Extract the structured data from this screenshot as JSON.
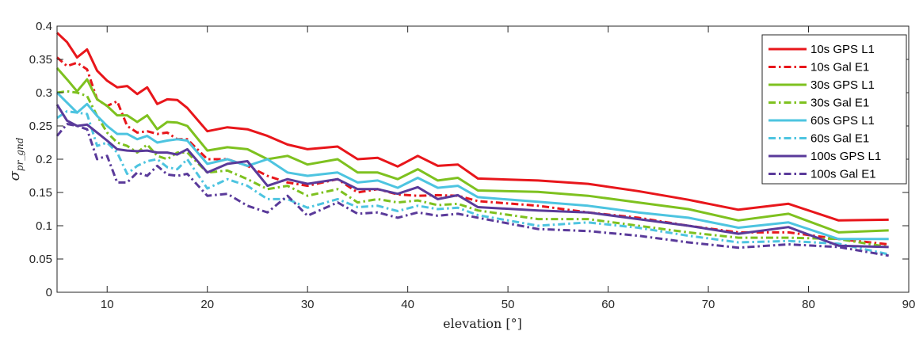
{
  "chart_data": {
    "type": "line",
    "title": "",
    "xlabel": "elevation [°]",
    "ylabel": "σ_pr_gnd",
    "ylabel_main": "σ",
    "ylabel_sub": "pr_gnd",
    "xlim": [
      5,
      90
    ],
    "ylim": [
      0,
      0.4
    ],
    "xticks": [
      10,
      20,
      30,
      40,
      50,
      60,
      70,
      80,
      90
    ],
    "yticks": [
      0,
      0.05,
      0.1,
      0.15,
      0.2,
      0.25,
      0.3,
      0.35,
      0.4
    ],
    "ytick_labels": [
      "0",
      "0.05",
      "0.1",
      "0.15",
      "0.2",
      "0.25",
      "0.3",
      "0.35",
      "0.4"
    ],
    "grid": false,
    "legend_position": "top-right",
    "x": [
      5,
      6,
      7,
      8,
      9,
      10,
      11,
      12,
      13,
      14,
      15,
      16,
      17,
      18,
      20,
      22,
      24,
      26,
      28,
      30,
      33,
      35,
      37,
      39,
      41,
      43,
      45,
      47,
      53,
      58,
      63,
      68,
      73,
      78,
      83,
      88
    ],
    "series": [
      {
        "name": "10s GPS L1",
        "color": "#e8161b",
        "style": "solid",
        "values": [
          0.39,
          0.376,
          0.353,
          0.365,
          0.333,
          0.318,
          0.308,
          0.31,
          0.298,
          0.308,
          0.283,
          0.29,
          0.289,
          0.277,
          0.242,
          0.248,
          0.245,
          0.235,
          0.222,
          0.215,
          0.219,
          0.2,
          0.202,
          0.189,
          0.205,
          0.19,
          0.192,
          0.171,
          0.168,
          0.163,
          0.152,
          0.139,
          0.124,
          0.133,
          0.108,
          0.109
        ]
      },
      {
        "name": "10s Gal E1",
        "color": "#e8161b",
        "style": "dashdot",
        "values": [
          0.353,
          0.34,
          0.345,
          0.335,
          0.29,
          0.28,
          0.287,
          0.25,
          0.24,
          0.242,
          0.238,
          0.24,
          0.23,
          0.23,
          0.2,
          0.2,
          0.19,
          0.175,
          0.165,
          0.16,
          0.17,
          0.15,
          0.155,
          0.147,
          0.145,
          0.146,
          0.145,
          0.137,
          0.13,
          0.12,
          0.112,
          0.1,
          0.09,
          0.09,
          0.08,
          0.072
        ]
      },
      {
        "name": "30s GPS L1",
        "color": "#7ec11f",
        "style": "solid",
        "values": [
          0.337,
          0.32,
          0.302,
          0.32,
          0.29,
          0.28,
          0.266,
          0.266,
          0.256,
          0.266,
          0.245,
          0.256,
          0.255,
          0.25,
          0.213,
          0.218,
          0.215,
          0.2,
          0.205,
          0.192,
          0.2,
          0.18,
          0.18,
          0.17,
          0.185,
          0.168,
          0.172,
          0.153,
          0.151,
          0.145,
          0.135,
          0.125,
          0.108,
          0.118,
          0.09,
          0.093
        ]
      },
      {
        "name": "30s Gal E1",
        "color": "#7ec11f",
        "style": "dashdot",
        "values": [
          0.3,
          0.302,
          0.3,
          0.295,
          0.265,
          0.24,
          0.225,
          0.22,
          0.21,
          0.222,
          0.205,
          0.2,
          0.21,
          0.21,
          0.18,
          0.183,
          0.17,
          0.155,
          0.16,
          0.145,
          0.155,
          0.135,
          0.14,
          0.135,
          0.138,
          0.131,
          0.133,
          0.123,
          0.11,
          0.11,
          0.1,
          0.09,
          0.082,
          0.082,
          0.08,
          0.068
        ]
      },
      {
        "name": "60s GPS L1",
        "color": "#4dc4e0",
        "style": "solid",
        "values": [
          0.3,
          0.285,
          0.27,
          0.283,
          0.265,
          0.25,
          0.238,
          0.238,
          0.23,
          0.235,
          0.225,
          0.228,
          0.23,
          0.228,
          0.193,
          0.2,
          0.19,
          0.2,
          0.18,
          0.175,
          0.18,
          0.165,
          0.168,
          0.157,
          0.172,
          0.157,
          0.16,
          0.143,
          0.136,
          0.13,
          0.12,
          0.112,
          0.097,
          0.105,
          0.08,
          0.08
        ]
      },
      {
        "name": "60s Gal E1",
        "color": "#4dc4e0",
        "style": "dashdot",
        "values": [
          0.262,
          0.272,
          0.27,
          0.268,
          0.22,
          0.225,
          0.21,
          0.178,
          0.19,
          0.197,
          0.2,
          0.188,
          0.185,
          0.2,
          0.156,
          0.17,
          0.16,
          0.14,
          0.14,
          0.127,
          0.14,
          0.128,
          0.13,
          0.122,
          0.13,
          0.125,
          0.127,
          0.116,
          0.1,
          0.105,
          0.097,
          0.085,
          0.075,
          0.077,
          0.073,
          0.057
        ]
      },
      {
        "name": "100s GPS L1",
        "color": "#5a3a9a",
        "style": "solid",
        "values": [
          0.282,
          0.258,
          0.25,
          0.252,
          0.24,
          0.228,
          0.215,
          0.213,
          0.212,
          0.213,
          0.21,
          0.21,
          0.207,
          0.215,
          0.18,
          0.193,
          0.197,
          0.16,
          0.17,
          0.163,
          0.17,
          0.155,
          0.155,
          0.148,
          0.158,
          0.14,
          0.146,
          0.128,
          0.123,
          0.12,
          0.11,
          0.1,
          0.088,
          0.098,
          0.07,
          0.068
        ]
      },
      {
        "name": "100s Gal E1",
        "color": "#5a3a9a",
        "style": "dashdot",
        "values": [
          0.235,
          0.253,
          0.25,
          0.245,
          0.2,
          0.205,
          0.165,
          0.165,
          0.18,
          0.175,
          0.19,
          0.177,
          0.175,
          0.178,
          0.145,
          0.148,
          0.13,
          0.12,
          0.145,
          0.115,
          0.135,
          0.118,
          0.12,
          0.112,
          0.12,
          0.115,
          0.118,
          0.112,
          0.095,
          0.092,
          0.085,
          0.075,
          0.067,
          0.072,
          0.068,
          0.055
        ]
      }
    ]
  }
}
